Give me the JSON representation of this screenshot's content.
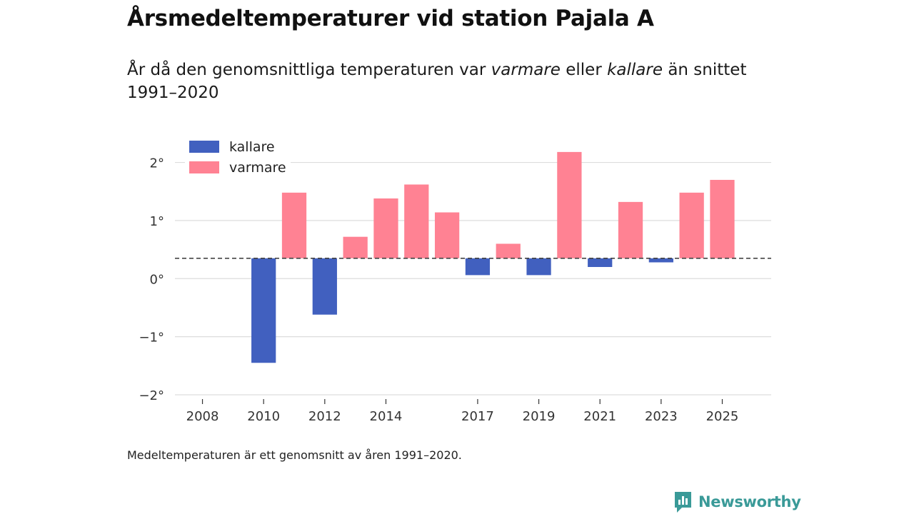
{
  "title": "Årsmedeltemperaturer vid station Pajala A",
  "subtitle": {
    "part1": "År då den genomsnittliga temperaturen var ",
    "warm_word": "varmare",
    "part2": " eller ",
    "cold_word": "kallare",
    "part3": " än snittet 1991–2020"
  },
  "footnote": "Medeltemperaturen är ett genomsnitt av åren 1991–2020.",
  "brand": {
    "name": "Newsworthy",
    "icon": "newsworthy-logo-icon"
  },
  "colors": {
    "warm": "#ff8293",
    "cold": "#4160bf",
    "grid": "#dddddd",
    "brand": "#3a9a98"
  },
  "chart_data": {
    "type": "bar",
    "title": "Årsmedeltemperaturer vid station Pajala A",
    "baseline": 0.35,
    "baseline_label": "snittet 1991–2020",
    "ylim": [
      -2,
      2.4
    ],
    "yticks": [
      2,
      1,
      0,
      -1,
      -2
    ],
    "ytick_labels": [
      "2°",
      "1°",
      "0°",
      "−1°",
      "−2°"
    ],
    "xlim": [
      2007.1,
      2026.6
    ],
    "xticks": [
      2008,
      2010,
      2012,
      2014,
      2017,
      2019,
      2021,
      2023,
      2025
    ],
    "xtick_labels": [
      "2008",
      "2010",
      "2012",
      "2014",
      "2017",
      "2019",
      "2021",
      "2023",
      "2025"
    ],
    "legend": [
      {
        "name": "kallare",
        "color": "#4160bf"
      },
      {
        "name": "varmare",
        "color": "#ff8293"
      }
    ],
    "legend_position": "top-left",
    "bars": [
      {
        "year": 2010,
        "value": -1.45,
        "category": "kallare"
      },
      {
        "year": 2011,
        "value": 1.48,
        "category": "varmare"
      },
      {
        "year": 2012,
        "value": -0.62,
        "category": "kallare"
      },
      {
        "year": 2013,
        "value": 0.72,
        "category": "varmare"
      },
      {
        "year": 2014,
        "value": 1.38,
        "category": "varmare"
      },
      {
        "year": 2015,
        "value": 1.62,
        "category": "varmare"
      },
      {
        "year": 2016,
        "value": 1.14,
        "category": "varmare"
      },
      {
        "year": 2017,
        "value": 0.06,
        "category": "kallare"
      },
      {
        "year": 2018,
        "value": 0.6,
        "category": "varmare"
      },
      {
        "year": 2019,
        "value": 0.06,
        "category": "kallare"
      },
      {
        "year": 2020,
        "value": 2.18,
        "category": "varmare"
      },
      {
        "year": 2021,
        "value": 0.2,
        "category": "kallare"
      },
      {
        "year": 2022,
        "value": 1.32,
        "category": "varmare"
      },
      {
        "year": 2023,
        "value": 0.28,
        "category": "kallare"
      },
      {
        "year": 2024,
        "value": 1.48,
        "category": "varmare"
      },
      {
        "year": 2025,
        "value": 1.7,
        "category": "varmare"
      }
    ]
  }
}
